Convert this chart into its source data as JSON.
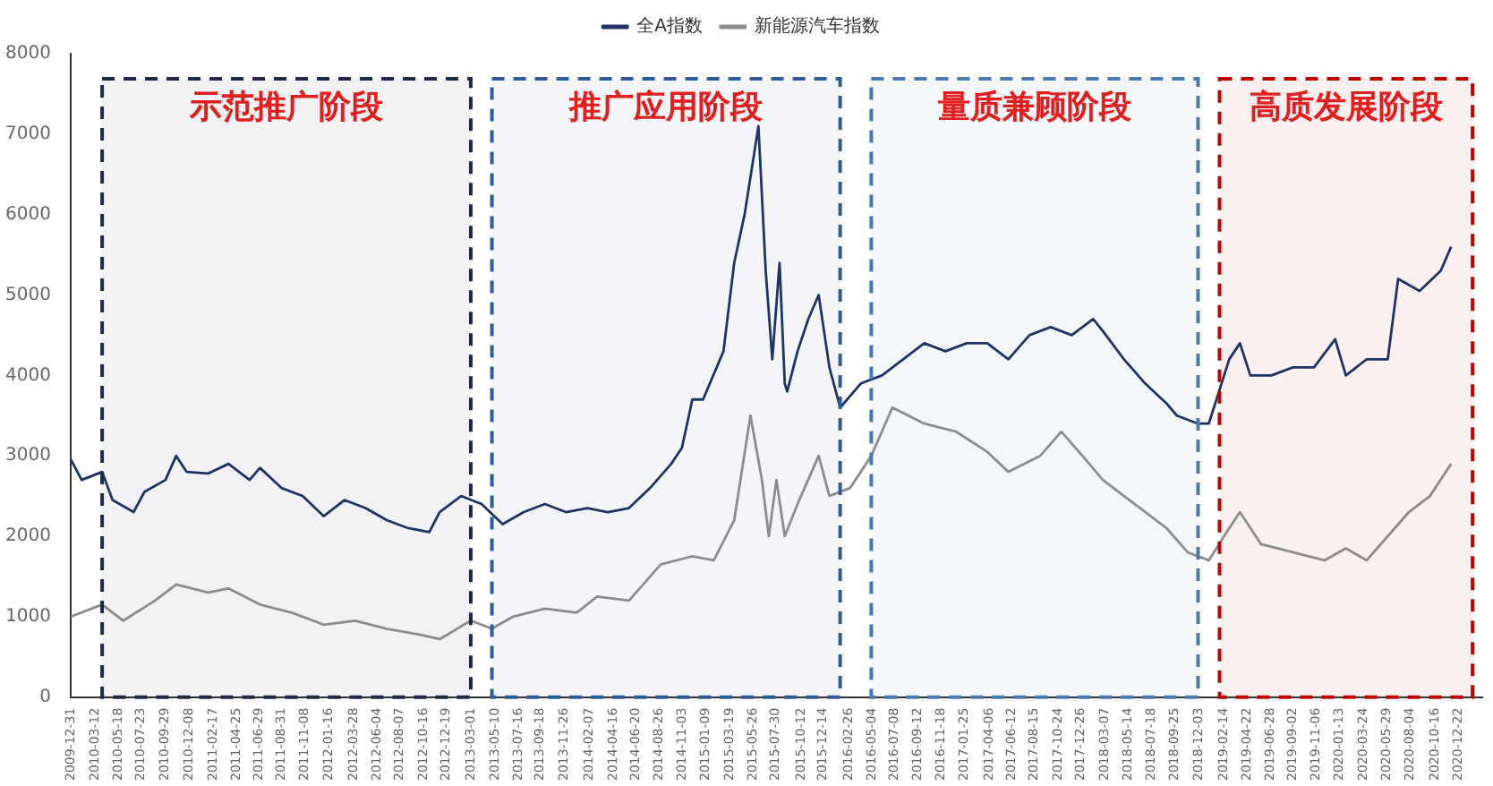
{
  "chart_data": {
    "type": "line",
    "legend": "top",
    "grid": false,
    "marker": "none",
    "line_style": "solid",
    "ylim": [
      0,
      8000
    ],
    "yticks": [
      0,
      1000,
      2000,
      3000,
      4000,
      5000,
      6000,
      7000,
      8000
    ],
    "xlim": [
      "2009-12-31",
      "2021-03-01"
    ],
    "xticks": [
      "2009-12-31",
      "2010-03-12",
      "2010-05-18",
      "2010-07-23",
      "2010-09-29",
      "2010-12-08",
      "2011-02-17",
      "2011-04-25",
      "2011-06-29",
      "2011-08-31",
      "2011-11-08",
      "2012-01-16",
      "2012-03-28",
      "2012-06-04",
      "2012-08-07",
      "2012-10-16",
      "2012-12-19",
      "2013-03-01",
      "2013-05-10",
      "2013-07-16",
      "2013-09-18",
      "2013-11-26",
      "2014-02-07",
      "2014-04-16",
      "2014-06-20",
      "2014-08-26",
      "2014-11-03",
      "2015-01-09",
      "2015-03-19",
      "2015-05-26",
      "2015-07-30",
      "2015-10-12",
      "2015-12-14",
      "2016-02-26",
      "2016-05-04",
      "2016-07-08",
      "2016-09-12",
      "2016-11-18",
      "2017-01-25",
      "2017-04-06",
      "2017-06-12",
      "2017-08-15",
      "2017-10-24",
      "2017-12-26",
      "2018-03-07",
      "2018-05-14",
      "2018-07-18",
      "2018-09-25",
      "2018-12-03",
      "2019-02-14",
      "2019-04-22",
      "2019-06-28",
      "2019-09-02",
      "2019-11-06",
      "2020-01-13",
      "2020-03-24",
      "2020-05-29",
      "2020-08-04",
      "2020-10-16",
      "2020-12-22"
    ],
    "bands": [
      {
        "axis": "x",
        "from": "2010-04",
        "to": "2013-03",
        "label": "示范推广阶段",
        "color": "#1f2a44"
      },
      {
        "axis": "x",
        "from": "2013-05",
        "to": "2016-02",
        "label": "推广应用阶段",
        "color": "#2e5c9a"
      },
      {
        "axis": "x",
        "from": "2016-05",
        "to": "2018-12",
        "label": "量质兼顾阶段",
        "color": "#4a7ab0"
      },
      {
        "axis": "x",
        "from": "2019-02",
        "to": "2021-02",
        "label": "高质发展阶段",
        "color": "#c00000"
      }
    ],
    "series": [
      {
        "name": "全A指数",
        "color": "#1f3464",
        "x": [
          "2010-01",
          "2010-02",
          "2010-04",
          "2010-05",
          "2010-07",
          "2010-08",
          "2010-10",
          "2010-11",
          "2010-12",
          "2011-02",
          "2011-04",
          "2011-06",
          "2011-07",
          "2011-09",
          "2011-11",
          "2012-01",
          "2012-03",
          "2012-05",
          "2012-07",
          "2012-09",
          "2012-11",
          "2012-12",
          "2013-02",
          "2013-04",
          "2013-06",
          "2013-08",
          "2013-10",
          "2013-12",
          "2014-02",
          "2014-04",
          "2014-06",
          "2014-08",
          "2014-10",
          "2014-11",
          "2014-12",
          "2015-01",
          "2015-03",
          "2015-04",
          "2015-05",
          "2015-06-10",
          "2015-07",
          "2015-07-20",
          "2015-08-10",
          "2015-08-25",
          "2015-09",
          "2015-10",
          "2015-11",
          "2015-12",
          "2016-01",
          "2016-02",
          "2016-04",
          "2016-06",
          "2016-08",
          "2016-10",
          "2016-12",
          "2017-02",
          "2017-04",
          "2017-06",
          "2017-08",
          "2017-10",
          "2017-12",
          "2018-02",
          "2018-03",
          "2018-05",
          "2018-07",
          "2018-09",
          "2018-10",
          "2018-12",
          "2019-01",
          "2019-03",
          "2019-04",
          "2019-05",
          "2019-07",
          "2019-09",
          "2019-11",
          "2020-01",
          "2020-02",
          "2020-04",
          "2020-06",
          "2020-07",
          "2020-09",
          "2020-11",
          "2020-12"
        ],
        "values": [
          2950,
          2700,
          2800,
          2450,
          2300,
          2550,
          2700,
          3000,
          2800,
          2780,
          2900,
          2700,
          2850,
          2600,
          2500,
          2250,
          2450,
          2350,
          2200,
          2100,
          2050,
          2300,
          2500,
          2400,
          2150,
          2300,
          2400,
          2300,
          2350,
          2300,
          2350,
          2600,
          2900,
          3100,
          3700,
          3700,
          4300,
          5400,
          6000,
          7100,
          5300,
          4200,
          5400,
          3900,
          3800,
          4300,
          4700,
          5000,
          4100,
          3600,
          3900,
          4000,
          4200,
          4400,
          4300,
          4400,
          4400,
          4200,
          4500,
          4600,
          4500,
          4700,
          4550,
          4200,
          3900,
          3650,
          3500,
          3400,
          3400,
          4200,
          4400,
          4000,
          4000,
          4100,
          4100,
          4450,
          4000,
          4200,
          4200,
          5200,
          5050,
          5300,
          5600
        ]
      },
      {
        "name": "新能源汽车指数",
        "color": "#8c8c8c",
        "x": [
          "2010-01",
          "2010-04",
          "2010-06",
          "2010-09",
          "2010-11",
          "2011-02",
          "2011-04",
          "2011-07",
          "2011-10",
          "2012-01",
          "2012-04",
          "2012-07",
          "2012-10",
          "2012-12",
          "2013-03",
          "2013-05",
          "2013-07",
          "2013-10",
          "2014-01",
          "2014-03",
          "2014-06",
          "2014-09",
          "2014-12",
          "2015-02",
          "2015-04",
          "2015-05-18",
          "2015-06-20",
          "2015-07-10",
          "2015-08-01",
          "2015-08-25",
          "2015-10",
          "2015-12",
          "2016-01",
          "2016-03",
          "2016-05",
          "2016-07",
          "2016-10",
          "2017-01",
          "2017-04",
          "2017-06",
          "2017-09",
          "2017-11",
          "2018-01",
          "2018-03",
          "2018-06",
          "2018-09",
          "2018-11",
          "2019-01",
          "2019-03",
          "2019-04",
          "2019-06",
          "2019-09",
          "2019-12",
          "2020-02",
          "2020-04",
          "2020-06",
          "2020-08",
          "2020-10",
          "2020-12"
        ],
        "values": [
          1000,
          1150,
          950,
          1200,
          1400,
          1300,
          1350,
          1150,
          1050,
          900,
          950,
          850,
          780,
          720,
          950,
          850,
          1000,
          1100,
          1050,
          1250,
          1200,
          1650,
          1750,
          1700,
          2200,
          3500,
          2700,
          2000,
          2700,
          2000,
          2400,
          3000,
          2500,
          2600,
          3000,
          3600,
          3400,
          3300,
          3050,
          2800,
          3000,
          3300,
          3000,
          2700,
          2400,
          2100,
          1800,
          1700,
          2100,
          2300,
          1900,
          1800,
          1700,
          1850,
          1700,
          2000,
          2300,
          2500,
          2900
        ]
      }
    ]
  }
}
